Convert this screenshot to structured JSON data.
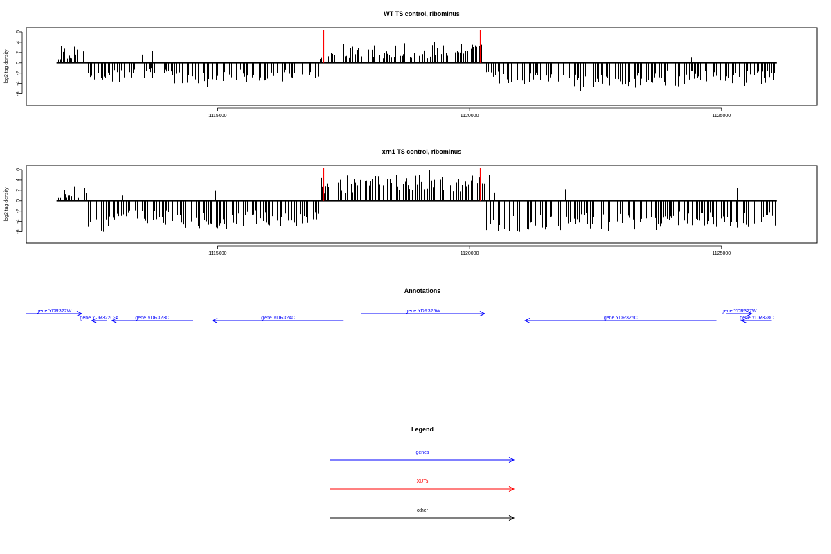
{
  "chart_data": [
    {
      "type": "bar",
      "title": "WT TS control, ribominus",
      "xlabel": "",
      "ylabel": "log2 tag density",
      "xlim": [
        1111200,
        1126900
      ],
      "ylim": [
        -8.2,
        6.8
      ],
      "yticks": [
        -6,
        -4,
        -2,
        0,
        2,
        4,
        6
      ],
      "xticks": [
        1115000,
        1120000,
        1125000
      ],
      "xtick_labels": [
        "1115000",
        "1120000",
        "1125000"
      ],
      "baseline": [
        1111800,
        1126100
      ],
      "markers": [
        1117100,
        1120200
      ],
      "segments": [
        {
          "from": 1111800,
          "to": 1112400,
          "min": 0.5,
          "max": 3.3
        },
        {
          "from": 1112400,
          "to": 1113200,
          "min": -3.8,
          "max": -1.4
        },
        {
          "from": 1113200,
          "to": 1114100,
          "min": -3.0,
          "max": -0.8
        },
        {
          "from": 1114100,
          "to": 1115300,
          "min": -4.8,
          "max": -1.6
        },
        {
          "from": 1115300,
          "to": 1117000,
          "min": -3.8,
          "max": -1.2
        },
        {
          "from": 1117000,
          "to": 1117400,
          "min": 0.5,
          "max": 2.2
        },
        {
          "from": 1117400,
          "to": 1120300,
          "min": 0.8,
          "max": 3.8
        },
        {
          "from": 1120300,
          "to": 1121700,
          "min": -4.2,
          "max": -1.6
        },
        {
          "from": 1121700,
          "to": 1123700,
          "min": -5.0,
          "max": -1.8
        },
        {
          "from": 1123700,
          "to": 1126100,
          "min": -4.6,
          "max": -1.4
        }
      ],
      "spikes": [
        {
          "x": 1112050,
          "y": 1.4
        },
        {
          "x": 1112800,
          "y": 1.1
        },
        {
          "x": 1113500,
          "y": 1.6
        },
        {
          "x": 1113700,
          "y": 2.3
        },
        {
          "x": 1116950,
          "y": 2.2
        },
        {
          "x": 1118700,
          "y": 3.8
        },
        {
          "x": 1119300,
          "y": 4.0
        },
        {
          "x": 1119900,
          "y": 2.6
        },
        {
          "x": 1120800,
          "y": -7.3
        },
        {
          "x": 1122200,
          "y": -5.4
        },
        {
          "x": 1124400,
          "y": 1.0
        }
      ]
    },
    {
      "type": "bar",
      "title": "xrn1 TS control, ribominus",
      "xlabel": "",
      "ylabel": "log2 tag density",
      "xlim": [
        1111200,
        1126900
      ],
      "ylim": [
        -8.2,
        6.8
      ],
      "yticks": [
        -6,
        -4,
        -2,
        0,
        2,
        4,
        6
      ],
      "xticks": [
        1115000,
        1120000,
        1125000
      ],
      "xtick_labels": [
        "1115000",
        "1120000",
        "1125000"
      ],
      "baseline": [
        1111800,
        1126100
      ],
      "markers": [
        1117100,
        1120200
      ],
      "segments": [
        {
          "from": 1111800,
          "to": 1112400,
          "min": 0.4,
          "max": 2.6
        },
        {
          "from": 1112400,
          "to": 1113000,
          "min": -6.0,
          "max": -2.2
        },
        {
          "from": 1113000,
          "to": 1114200,
          "min": -4.8,
          "max": -1.6
        },
        {
          "from": 1114200,
          "to": 1115400,
          "min": -5.6,
          "max": -2.2
        },
        {
          "from": 1115400,
          "to": 1117000,
          "min": -5.0,
          "max": -1.8
        },
        {
          "from": 1117000,
          "to": 1117400,
          "min": 1.0,
          "max": 4.6
        },
        {
          "from": 1117400,
          "to": 1120300,
          "min": 1.4,
          "max": 5.2
        },
        {
          "from": 1120300,
          "to": 1121800,
          "min": -6.2,
          "max": -2.6
        },
        {
          "from": 1121800,
          "to": 1123800,
          "min": -6.0,
          "max": -2.4
        },
        {
          "from": 1123800,
          "to": 1126100,
          "min": -5.2,
          "max": -2.0
        }
      ],
      "spikes": [
        {
          "x": 1111950,
          "y": 2.1
        },
        {
          "x": 1112150,
          "y": 2.7
        },
        {
          "x": 1113100,
          "y": 1.0
        },
        {
          "x": 1114950,
          "y": 1.9
        },
        {
          "x": 1116900,
          "y": 3.0
        },
        {
          "x": 1117050,
          "y": 4.4
        },
        {
          "x": 1119200,
          "y": 6.0
        },
        {
          "x": 1119950,
          "y": 5.6
        },
        {
          "x": 1120380,
          "y": 5.0
        },
        {
          "x": 1120500,
          "y": 1.6
        },
        {
          "x": 1120800,
          "y": -7.6
        },
        {
          "x": 1121900,
          "y": 2.2
        },
        {
          "x": 1125300,
          "y": 2.4
        },
        {
          "x": 1125300,
          "y": -5.2
        }
      ]
    }
  ],
  "annotations": {
    "title": "Annotations",
    "genes": [
      {
        "label": "gene YDR322W",
        "start": 1111200,
        "end": 1112300,
        "strand": "+",
        "row": 0
      },
      {
        "label": "gene YDR322C-A",
        "start": 1112500,
        "end": 1112800,
        "strand": "-",
        "row": 1
      },
      {
        "label": "gene YDR323C",
        "start": 1112900,
        "end": 1114500,
        "strand": "-",
        "row": 1
      },
      {
        "label": "gene YDR324C",
        "start": 1114900,
        "end": 1117500,
        "strand": "-",
        "row": 1
      },
      {
        "label": "gene YDR325W",
        "start": 1117850,
        "end": 1120300,
        "strand": "+",
        "row": 0
      },
      {
        "label": "gene YDR326C",
        "start": 1121100,
        "end": 1124900,
        "strand": "-",
        "row": 1
      },
      {
        "label": "gene YDR327W",
        "start": 1125100,
        "end": 1125600,
        "strand": "+",
        "row": 0
      },
      {
        "label": "gene YDR328C",
        "start": 1125400,
        "end": 1126000,
        "strand": "-",
        "row": 1
      }
    ]
  },
  "legend": {
    "title": "Legend",
    "items": [
      {
        "label": "genes",
        "color": "#0000ff"
      },
      {
        "label": "XUTs",
        "color": "#ff0000"
      },
      {
        "label": "other",
        "color": "#000000"
      }
    ]
  },
  "colors": {
    "gene": "#0000ff",
    "xut": "#ff0000",
    "bars": "#000000"
  }
}
